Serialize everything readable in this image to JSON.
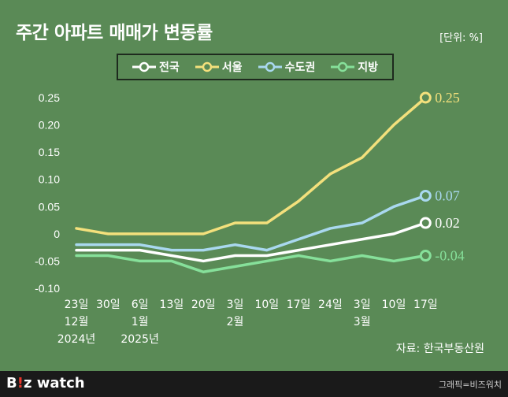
{
  "title": "주간 아파트 매매가 변동률",
  "unit": "[단위: %]",
  "source": "자료: 한국부동산원",
  "credit": "그래픽=비즈워치",
  "brand": {
    "prefix": "B",
    "accent": "!",
    "suffix": "z watch"
  },
  "chart_data": {
    "type": "line",
    "x": [
      "23일",
      "30일",
      "6일",
      "13일",
      "20일",
      "3일",
      "10일",
      "17일",
      "24일",
      "3일",
      "10일",
      "17일"
    ],
    "x_sub": [
      "12월",
      "",
      "1월",
      "",
      "",
      "2월",
      "",
      "",
      "",
      "3월",
      "",
      ""
    ],
    "x_sub2": [
      "2024년",
      "",
      "2025년",
      "",
      "",
      "",
      "",
      "",
      "",
      "",
      "",
      ""
    ],
    "ylim": [
      -0.1,
      0.25
    ],
    "yticks": [
      0.25,
      0.2,
      0.15,
      0.1,
      0.05,
      0,
      -0.05,
      -0.1
    ],
    "ytick_labels": [
      "0.25",
      "0.20",
      "0.15",
      "0.10",
      "0.05",
      "0",
      "-0.05",
      "-0.10"
    ],
    "series": [
      {
        "name": "전국",
        "color": "#ffffff",
        "values": [
          -0.03,
          -0.03,
          -0.03,
          -0.04,
          -0.05,
          -0.04,
          -0.04,
          -0.03,
          -0.02,
          -0.01,
          0.0,
          0.02
        ],
        "end_label": "0.02"
      },
      {
        "name": "서울",
        "color": "#f3e07c",
        "values": [
          0.01,
          0.0,
          0.0,
          0.0,
          0.0,
          0.02,
          0.02,
          0.06,
          0.11,
          0.14,
          0.2,
          0.25
        ],
        "end_label": "0.25"
      },
      {
        "name": "수도권",
        "color": "#a9d8ef",
        "values": [
          -0.02,
          -0.02,
          -0.02,
          -0.03,
          -0.03,
          -0.02,
          -0.03,
          -0.01,
          0.01,
          0.02,
          0.05,
          0.07
        ],
        "end_label": "0.07"
      },
      {
        "name": "지방",
        "color": "#86e09a",
        "values": [
          -0.04,
          -0.04,
          -0.05,
          -0.05,
          -0.07,
          -0.06,
          -0.05,
          -0.04,
          -0.05,
          -0.04,
          -0.05,
          -0.04
        ],
        "end_label": "-0.04"
      }
    ]
  }
}
